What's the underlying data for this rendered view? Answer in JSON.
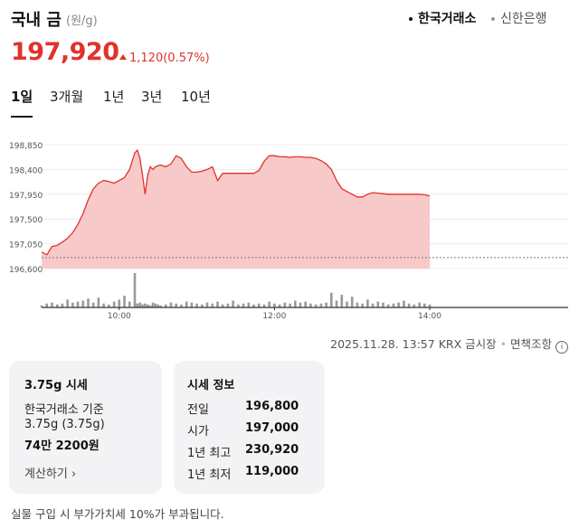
{
  "header": {
    "title": "국내 금",
    "unit": "(원/g)",
    "sources": [
      {
        "label": "한국거래소",
        "active": true
      },
      {
        "label": "신한은행",
        "active": false
      }
    ]
  },
  "price": {
    "value": "197,920",
    "change": "1,120",
    "change_pct": "(0.57%)",
    "direction": "up",
    "color": "#e0322c"
  },
  "tabs": [
    {
      "label": "1일",
      "active": true
    },
    {
      "label": "3개월",
      "active": false
    },
    {
      "label": "1년",
      "active": false
    },
    {
      "label": "3년",
      "active": false
    },
    {
      "label": "10년",
      "active": false
    }
  ],
  "chart_data": {
    "type": "area",
    "y_ticks": [
      "198,850",
      "198,400",
      "197,950",
      "197,500",
      "197,050",
      "196,600"
    ],
    "ylim": [
      196600,
      198850
    ],
    "x_ticks": [
      "10:00",
      "12:00",
      "14:00"
    ],
    "xlim": [
      "09:00",
      "14:00"
    ],
    "baseline": 196800,
    "line_color": "#e0322c",
    "fill_color": "#f8c9c9",
    "series": [
      {
        "x": [
          "09:00",
          "09:04",
          "09:08",
          "09:12",
          "09:16",
          "09:20",
          "09:24",
          "09:28",
          "09:32",
          "09:36",
          "09:40",
          "09:44",
          "09:48",
          "09:52",
          "09:56",
          "10:00",
          "10:04",
          "10:08",
          "10:12",
          "10:14",
          "10:16",
          "10:18",
          "10:20",
          "10:22",
          "10:24",
          "10:26",
          "10:28",
          "10:30",
          "10:32",
          "10:36",
          "10:40",
          "10:44",
          "10:48",
          "10:52",
          "10:56",
          "11:00",
          "11:04",
          "11:08",
          "11:12",
          "11:16",
          "11:20",
          "11:24",
          "11:28",
          "11:32",
          "11:36",
          "11:40",
          "11:44",
          "11:48",
          "11:52",
          "11:56",
          "12:00",
          "12:04",
          "12:08",
          "12:12",
          "12:16",
          "12:20",
          "12:24",
          "12:28",
          "12:32",
          "12:36",
          "12:40",
          "12:44",
          "12:48",
          "12:52",
          "12:56",
          "13:00",
          "13:04",
          "13:08",
          "13:12",
          "13:16",
          "13:20",
          "13:24",
          "13:28",
          "13:32",
          "13:36",
          "13:40",
          "13:44",
          "13:48",
          "13:52",
          "13:56",
          "14:00"
        ],
        "values": [
          196900,
          196850,
          197000,
          197020,
          197080,
          197150,
          197250,
          197400,
          197600,
          197850,
          198050,
          198150,
          198200,
          198180,
          198150,
          198200,
          198250,
          198400,
          198700,
          198750,
          198600,
          198300,
          197950,
          198300,
          198450,
          198400,
          198450,
          198470,
          198480,
          198450,
          198500,
          198650,
          198600,
          198450,
          198350,
          198350,
          198370,
          198400,
          198450,
          198200,
          198330,
          198330,
          198330,
          198330,
          198330,
          198330,
          198330,
          198380,
          198550,
          198650,
          198650,
          198630,
          198630,
          198620,
          198630,
          198630,
          198620,
          198620,
          198600,
          198560,
          198500,
          198400,
          198200,
          198050,
          198000,
          197950,
          197900,
          197900,
          197950,
          197980,
          197970,
          197960,
          197950,
          197950,
          197950,
          197950,
          197950,
          197950,
          197950,
          197940,
          197920
        ]
      }
    ],
    "volume": [
      2,
      4,
      5,
      3,
      4,
      8,
      5,
      6,
      7,
      9,
      5,
      10,
      4,
      3,
      6,
      8,
      12,
      6,
      35,
      4,
      5,
      3,
      4,
      3,
      2,
      5,
      4,
      3,
      2,
      3,
      5,
      4,
      3,
      6,
      5,
      4,
      3,
      5,
      4,
      6,
      3,
      4,
      7,
      3,
      4,
      5,
      3,
      4,
      3,
      6,
      4,
      3,
      5,
      4,
      7,
      5,
      6,
      4,
      3,
      4,
      5,
      15,
      7,
      13,
      6,
      11,
      5,
      4,
      8,
      4,
      6,
      5,
      3,
      4,
      5,
      7,
      4,
      3,
      5,
      4,
      3
    ]
  },
  "timestamp": {
    "datetime": "2025.11.28. 13:57",
    "source": "KRX 금시장",
    "disclaimer": "면책조항"
  },
  "card_quote": {
    "title": "3.75g 시세",
    "basis": "한국거래소 기준",
    "weight": "3.75g (3.75g)",
    "amount": "74만 2200원",
    "link": "계산하기"
  },
  "card_info": {
    "title": "시세 정보",
    "rows": [
      {
        "label": "전일",
        "value": "196,800"
      },
      {
        "label": "시가",
        "value": "197,000"
      },
      {
        "label": "1년 최고",
        "value": "230,920"
      },
      {
        "label": "1년 최저",
        "value": "119,000"
      }
    ]
  },
  "footnote": "실물 구입 시 부가가치세 10%가 부과됩니다."
}
